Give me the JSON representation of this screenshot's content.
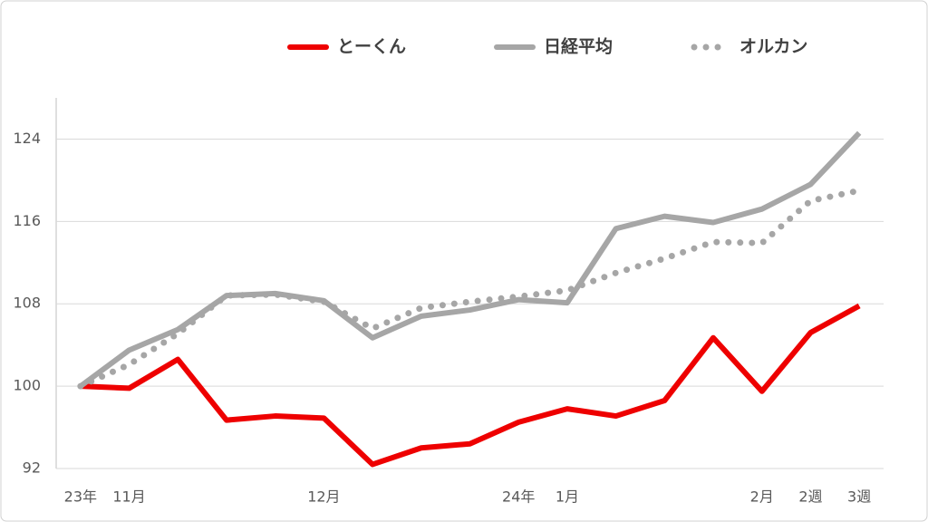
{
  "chart_data": {
    "type": "line",
    "categories": [
      "23年",
      "11月",
      null,
      null,
      null,
      "12月",
      null,
      null,
      null,
      "24年",
      "1月",
      null,
      null,
      null,
      "2月",
      "2週",
      "3週"
    ],
    "series": [
      {
        "name": "とーくん",
        "color": "#ee0000",
        "style": "solid",
        "values": [
          100,
          99.8,
          102.6,
          96.7,
          97.1,
          96.9,
          92.4,
          94.0,
          94.4,
          96.5,
          97.8,
          97.1,
          98.6,
          104.7,
          99.5,
          105.2,
          107.8
        ]
      },
      {
        "name": "日経平均",
        "color": "#a6a6a6",
        "style": "solid",
        "values": [
          100,
          103.5,
          105.5,
          108.8,
          109.0,
          108.3,
          104.7,
          106.8,
          107.4,
          108.4,
          108.1,
          115.3,
          116.5,
          115.9,
          117.2,
          119.6,
          124.6
        ]
      },
      {
        "name": "オルカン",
        "color": "#a6a6a6",
        "style": "dotted",
        "values": [
          100,
          102.1,
          105.1,
          108.8,
          108.9,
          108.2,
          105.6,
          107.6,
          108.2,
          108.7,
          109.3,
          111.0,
          112.4,
          114.0,
          113.9,
          118.0,
          119.0
        ]
      }
    ],
    "ylim": [
      92,
      128
    ],
    "yticks": [
      92,
      100,
      108,
      116,
      124
    ],
    "grid": true,
    "legend": "top"
  }
}
